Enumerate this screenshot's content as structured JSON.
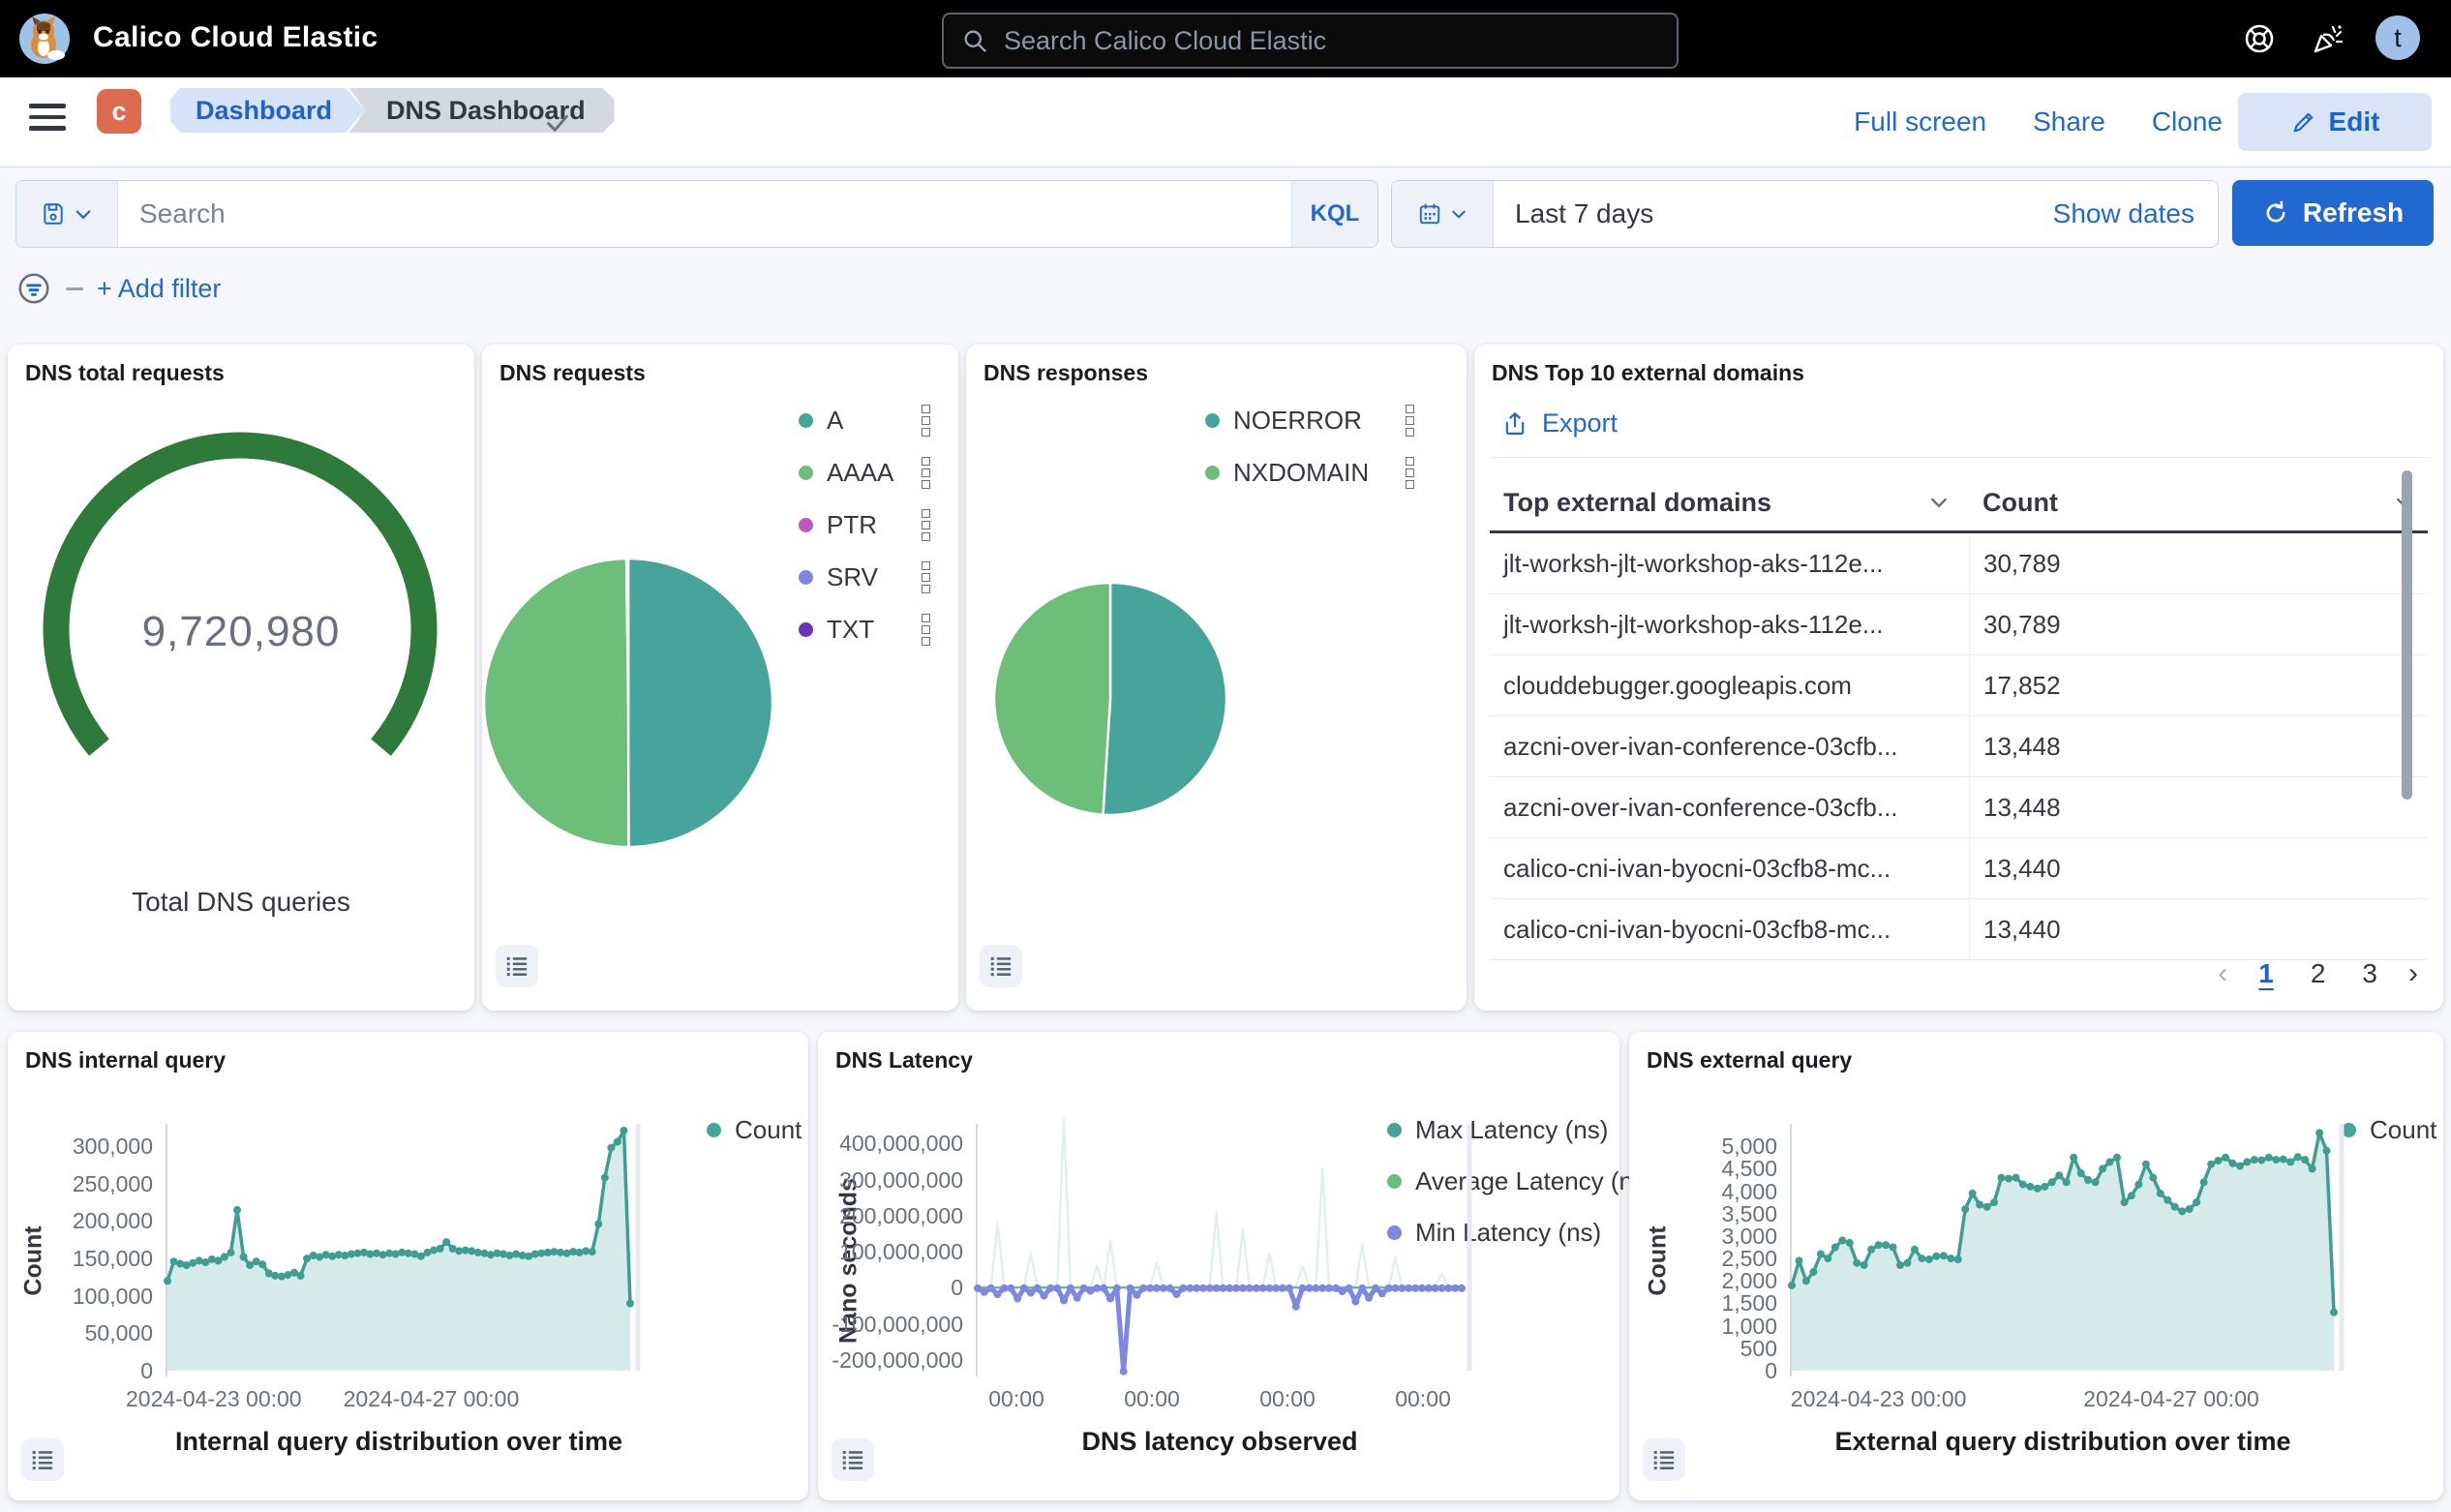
{
  "colors": {
    "accent": "#2268d1",
    "teal": "#46a49a",
    "green": "#6dbe79",
    "magenta": "#bf57c0",
    "periwinkle": "#7d88e2",
    "violet": "#6633b9",
    "gauge_green": "#2d7a3a",
    "axis_text": "#69707d"
  },
  "topbar": {
    "title": "Calico Cloud Elastic",
    "search_placeholder": "Search Calico Cloud Elastic",
    "avatar_initial": "t"
  },
  "nav": {
    "space_badge": "c",
    "breadcrumbs": [
      "Dashboard",
      "DNS Dashboard"
    ],
    "links": [
      "Full screen",
      "Share",
      "Clone"
    ],
    "edit_label": "Edit"
  },
  "filters": {
    "search_placeholder": "Search",
    "kql_label": "KQL",
    "time_range": "Last 7 days",
    "show_dates_label": "Show dates",
    "refresh_label": "Refresh",
    "add_filter_label": "+ Add filter"
  },
  "panels": {
    "gauge": {
      "title": "DNS total requests"
    },
    "requests": {
      "title": "DNS requests",
      "legend": [
        {
          "label": "A",
          "color": "#46a49a"
        },
        {
          "label": "AAAA",
          "color": "#6dbe79"
        },
        {
          "label": "PTR",
          "color": "#bf57c0"
        },
        {
          "label": "SRV",
          "color": "#7d88e2"
        },
        {
          "label": "TXT",
          "color": "#6633b9"
        }
      ]
    },
    "responses": {
      "title": "DNS responses",
      "legend": [
        {
          "label": "NOERROR",
          "color": "#46a49a"
        },
        {
          "label": "NXDOMAIN",
          "color": "#6dbe79"
        }
      ]
    },
    "domains": {
      "title": "DNS Top 10 external domains",
      "export_label": "Export",
      "columns": [
        "Top external domains",
        "Count"
      ],
      "rows": [
        {
          "domain": "jlt-worksh-jlt-workshop-aks-112e...",
          "count": "30,789"
        },
        {
          "domain": "jlt-worksh-jlt-workshop-aks-112e...",
          "count": "30,789"
        },
        {
          "domain": "clouddebugger.googleapis.com",
          "count": "17,852"
        },
        {
          "domain": "azcni-over-ivan-conference-03cfb...",
          "count": "13,448"
        },
        {
          "domain": "azcni-over-ivan-conference-03cfb...",
          "count": "13,448"
        },
        {
          "domain": "calico-cni-ivan-byocni-03cfb8-mc...",
          "count": "13,440"
        },
        {
          "domain": "calico-cni-ivan-byocni-03cfb8-mc...",
          "count": "13,440"
        }
      ],
      "pagination": {
        "pages": [
          "1",
          "2",
          "3"
        ],
        "active": "1"
      }
    },
    "internal": {
      "title": "DNS internal query",
      "legend": [
        {
          "label": "Count",
          "color": "#46a49a"
        }
      ]
    },
    "latency": {
      "title": "DNS Latency",
      "legend": [
        {
          "label": "Max Latency (ns)",
          "color": "#46a49a"
        },
        {
          "label": "Average Latency (ns)",
          "color": "#6dbe79"
        },
        {
          "label": "Min Latency (ns)",
          "color": "#7d88e2"
        }
      ]
    },
    "external": {
      "title": "DNS external query",
      "legend": [
        {
          "label": "Count",
          "color": "#46a49a"
        }
      ]
    }
  },
  "chart_data": [
    {
      "id": "total_requests_gauge",
      "type": "gauge",
      "title": "DNS total requests",
      "value": 9720980,
      "value_display": "9,720,980",
      "label": "Total DNS queries",
      "color": "#2d7a3a"
    },
    {
      "id": "requests_pie",
      "type": "pie",
      "title": "DNS requests",
      "slices": [
        {
          "label": "A",
          "pct": 49.95,
          "color": "#46a49a"
        },
        {
          "label": "AAAA",
          "pct": 49.85,
          "color": "#6dbe79"
        },
        {
          "label": "PTR",
          "pct": 0.1,
          "color": "#bf57c0"
        },
        {
          "label": "SRV",
          "pct": 0.06,
          "color": "#7d88e2"
        },
        {
          "label": "TXT",
          "pct": 0.04,
          "color": "#6633b9"
        }
      ]
    },
    {
      "id": "responses_pie",
      "type": "pie",
      "title": "DNS responses",
      "slices": [
        {
          "label": "NOERROR",
          "pct": 51,
          "color": "#46a49a"
        },
        {
          "label": "NXDOMAIN",
          "pct": 49,
          "color": "#6dbe79"
        }
      ]
    },
    {
      "id": "internal_query",
      "type": "area",
      "title": "DNS internal query",
      "xlabel": "Internal query distribution over time",
      "ylabel": "Count",
      "y_domain": [
        0,
        330000
      ],
      "y_ticks": [
        {
          "v": 300000,
          "label": "300,000"
        },
        {
          "v": 250000,
          "label": "250,000"
        },
        {
          "v": 200000,
          "label": "200,000"
        },
        {
          "v": 150000,
          "label": "150,000"
        },
        {
          "v": 100000,
          "label": "100,000"
        },
        {
          "v": 50000,
          "label": "50,000"
        },
        {
          "v": 0,
          "label": "0"
        }
      ],
      "x_ticks": [
        {
          "f": 0.1,
          "label": "2024-04-23 00:00"
        },
        {
          "f": 0.57,
          "label": "2024-04-27 00:00"
        }
      ],
      "series": [
        {
          "name": "Count",
          "color": "#3f9e92",
          "fill": "rgba(70,164,154,0.22)",
          "line_width": 3.5,
          "markers": true,
          "values": [
            120000,
            146000,
            143000,
            141000,
            144000,
            147000,
            145000,
            149000,
            147000,
            152000,
            158000,
            215000,
            152000,
            141000,
            146000,
            142000,
            130000,
            127000,
            126000,
            128000,
            131000,
            127000,
            150000,
            154000,
            152000,
            155000,
            153000,
            155000,
            154000,
            156000,
            157000,
            158000,
            156000,
            157000,
            155000,
            157000,
            156000,
            158000,
            157000,
            156000,
            153000,
            158000,
            161000,
            163000,
            172000,
            163000,
            160000,
            161000,
            160000,
            158000,
            157000,
            155000,
            157000,
            156000,
            154000,
            156000,
            154000,
            153000,
            156000,
            157000,
            158000,
            159000,
            158000,
            157000,
            159000,
            158000,
            160000,
            159000,
            196000,
            258000,
            298000,
            306000,
            321000,
            90000
          ]
        }
      ]
    },
    {
      "id": "latency",
      "type": "line",
      "title": "DNS Latency",
      "xlabel": "DNS latency observed",
      "ylabel": "Nano seconds",
      "y_domain": [
        -230000000,
        455000000
      ],
      "y_ticks": [
        {
          "v": 400000000,
          "label": "400,000,000"
        },
        {
          "v": 300000000,
          "label": "300,000,000"
        },
        {
          "v": 200000000,
          "label": "200,000,000"
        },
        {
          "v": 100000000,
          "label": "100,000,000"
        },
        {
          "v": 0,
          "label": "0"
        },
        {
          "v": -100000000,
          "label": "-100,000,000"
        },
        {
          "v": -200000000,
          "label": "-200,000,000"
        }
      ],
      "x_ticks": [
        {
          "f": 0.08,
          "label": "00:00"
        },
        {
          "f": 0.36,
          "label": "00:00"
        },
        {
          "f": 0.64,
          "label": "00:00"
        },
        {
          "f": 0.92,
          "label": "00:00"
        }
      ],
      "series": [
        {
          "name": "Max Latency (ns)",
          "color": "rgba(70,164,154,0.16)",
          "line_width": 2.5,
          "markers": false,
          "values": [
            2000000,
            2000000,
            2000000,
            180000000,
            2000000,
            2000000,
            2000000,
            2000000,
            95000000,
            2000000,
            2000000,
            2000000,
            2000000,
            470000000,
            2000000,
            2000000,
            2000000,
            2000000,
            60000000,
            2000000,
            130000000,
            2000000,
            2000000,
            2000000,
            2000000,
            2000000,
            2000000,
            70000000,
            2000000,
            2000000,
            2000000,
            2000000,
            2000000,
            2000000,
            2000000,
            2000000,
            210000000,
            2000000,
            2000000,
            2000000,
            160000000,
            2000000,
            2000000,
            2000000,
            95000000,
            2000000,
            2000000,
            2000000,
            2000000,
            60000000,
            2000000,
            2000000,
            330000000,
            2000000,
            2000000,
            2000000,
            2000000,
            2000000,
            120000000,
            2000000,
            2000000,
            2000000,
            2000000,
            85000000,
            2000000,
            2000000,
            2000000,
            2000000,
            2000000,
            2000000,
            40000000,
            2000000,
            2000000,
            2000000
          ]
        },
        {
          "name": "Average Latency (ns)",
          "color": "#6dbe79",
          "line_width": 2.5,
          "markers": false,
          "values_const": 800000,
          "n": 74
        },
        {
          "name": "Min Latency (ns)",
          "color": "#7d88e2",
          "line_width": 5,
          "markers": true,
          "values": [
            -1200000,
            -12000000,
            -1200000,
            -18000000,
            -1200000,
            -1200000,
            -30000000,
            -1200000,
            -14000000,
            -1200000,
            -22000000,
            -1200000,
            -1200000,
            -35000000,
            -1200000,
            -28000000,
            -1200000,
            -8000000,
            -1200000,
            -1200000,
            -30000000,
            -1200000,
            -232000000,
            -1200000,
            -20000000,
            -1200000,
            -1200000,
            -1200000,
            -1200000,
            -1200000,
            -18000000,
            -1200000,
            -1200000,
            -1200000,
            -1200000,
            -1200000,
            -1200000,
            -1200000,
            -1200000,
            -1200000,
            -1200000,
            -1200000,
            -1200000,
            -1200000,
            -1200000,
            -1200000,
            -1200000,
            -1200000,
            -52000000,
            -1200000,
            -1200000,
            -1200000,
            -1200000,
            -1200000,
            -1200000,
            -10000000,
            -1200000,
            -38000000,
            -1200000,
            -28000000,
            -1200000,
            -16000000,
            -1200000,
            -1200000,
            -1200000,
            -1200000,
            -1200000,
            -1200000,
            -1200000,
            -1200000,
            -1200000,
            -1200000,
            -1200000,
            -1200000
          ]
        }
      ]
    },
    {
      "id": "external_query",
      "type": "area",
      "title": "DNS external query",
      "xlabel": "External query distribution over time",
      "ylabel": "Count",
      "y_domain": [
        0,
        5500
      ],
      "y_ticks": [
        {
          "v": 5000,
          "label": "5,000"
        },
        {
          "v": 4500,
          "label": "4,500"
        },
        {
          "v": 4000,
          "label": "4,000"
        },
        {
          "v": 3500,
          "label": "3,500"
        },
        {
          "v": 3000,
          "label": "3,000"
        },
        {
          "v": 2500,
          "label": "2,500"
        },
        {
          "v": 2000,
          "label": "2,000"
        },
        {
          "v": 1500,
          "label": "1,500"
        },
        {
          "v": 1000,
          "label": "1,000"
        },
        {
          "v": 500,
          "label": "500"
        },
        {
          "v": 0,
          "label": "0"
        }
      ],
      "x_ticks": [
        {
          "f": 0.16,
          "label": "2024-04-23 00:00"
        },
        {
          "f": 0.7,
          "label": "2024-04-27 00:00"
        }
      ],
      "series": [
        {
          "name": "Count",
          "color": "#3f9e92",
          "fill": "rgba(70,164,154,0.22)",
          "line_width": 3.5,
          "markers": true,
          "values": [
            1900,
            2450,
            2000,
            2200,
            2600,
            2500,
            2750,
            2900,
            2850,
            2400,
            2350,
            2700,
            2800,
            2800,
            2750,
            2350,
            2400,
            2700,
            2500,
            2480,
            2550,
            2560,
            2500,
            2480,
            3600,
            3950,
            3700,
            3650,
            3750,
            4300,
            4280,
            4300,
            4150,
            4100,
            4060,
            4100,
            4200,
            4350,
            4200,
            4750,
            4400,
            4250,
            4200,
            4500,
            4650,
            4750,
            3750,
            3900,
            4150,
            4600,
            4300,
            3950,
            3800,
            3650,
            3550,
            3600,
            3750,
            4200,
            4600,
            4680,
            4750,
            4620,
            4560,
            4650,
            4700,
            4690,
            4750,
            4700,
            4710,
            4650,
            4760,
            4700,
            4500,
            5300,
            4900,
            1300
          ]
        }
      ]
    }
  ]
}
